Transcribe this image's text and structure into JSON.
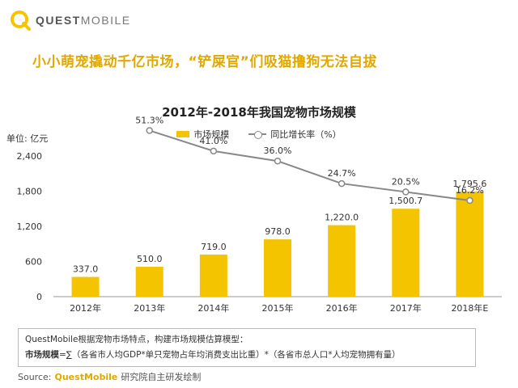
{
  "header": {
    "logo_text_bold": "QUEST",
    "logo_text_light": "MOBILE",
    "headline": "小小萌宠撬动千亿市场，“铲屎官”们吸猫撸狗无法自拔"
  },
  "colors": {
    "bar": "#f5c400",
    "line": "#888888",
    "accent": "#e0a800"
  },
  "chart_data": {
    "type": "bar",
    "title": "2012年-2018年我国宠物市场规模",
    "unit_label": "单位: 亿元",
    "categories": [
      "2012年",
      "2013年",
      "2014年",
      "2015年",
      "2016年",
      "2017年",
      "2018年E"
    ],
    "series": [
      {
        "name": "市场规模",
        "type": "bar",
        "values": [
          337.0,
          510.0,
          719.0,
          978.0,
          1220.0,
          1500.7,
          1795.6
        ],
        "labels": [
          "337.0",
          "510.0",
          "719.0",
          "978.0",
          "1,220.0",
          "1,500.7",
          "1,795.6"
        ]
      },
      {
        "name": "同比增长率（%）",
        "type": "line",
        "values": [
          null,
          51.3,
          41.0,
          36.0,
          24.7,
          20.5,
          16.2
        ],
        "labels": [
          "",
          "51.3%",
          "41.0%",
          "36.0%",
          "24.7%",
          "20.5%",
          "16.2%"
        ]
      }
    ],
    "ylim": [
      0,
      2400
    ],
    "yticks": [
      0,
      600,
      1200,
      1800,
      2400
    ],
    "ytick_labels": [
      "0",
      "600",
      "1,200",
      "1,800",
      "2,400"
    ],
    "legend": [
      "市场规模",
      "同比增长率（%）"
    ]
  },
  "footer": {
    "formula_intro": "QuestMobile根据宠物市场特点，构建市场规模估算模型：",
    "formula_label": "市场规模",
    "formula_body": "=∑（各省市人均GDP*单只宠物占年均消费支出比重）*（各省市总人口*人均宠物拥有量）",
    "source_label": "Source:",
    "source_brand": "QuestMobile",
    "source_text": "研究院自主研发绘制"
  }
}
